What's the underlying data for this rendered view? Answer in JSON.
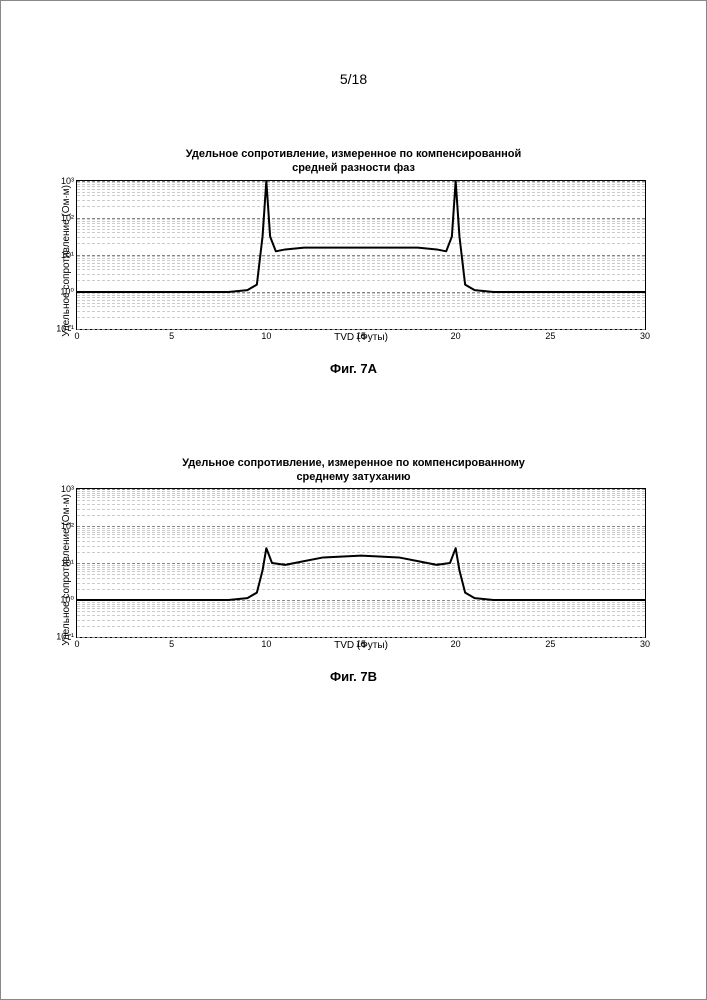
{
  "page_number": "5/18",
  "chartA": {
    "type": "line",
    "title_line1": "Удельное сопротивление, измеренное по компенсированной",
    "title_line2": "средней разности фаз",
    "ylabel": "Удельное сопротивление (Ом·м)",
    "xlabel": "TVD (Футы)",
    "caption": "Фиг. 7A",
    "xlim": [
      0,
      30
    ],
    "xticks": [
      0,
      5,
      10,
      15,
      20,
      25,
      30
    ],
    "ylim_exp": [
      -1,
      3
    ],
    "ytick_exps": [
      -1,
      0,
      1,
      2,
      3
    ],
    "ytick_labels": [
      "10⁻¹",
      "10⁰",
      "10¹",
      "10²",
      "10³"
    ],
    "line_color": "#000000",
    "line_width": 2,
    "grid_color_major": "#888888",
    "grid_color_minor": "#cccccc",
    "background_color": "#ffffff",
    "series_x": [
      0,
      8,
      9,
      9.5,
      9.8,
      10,
      10.2,
      10.5,
      11,
      12,
      15,
      18,
      19,
      19.5,
      19.8,
      20,
      20.2,
      20.5,
      21,
      22,
      30
    ],
    "series_y_exp": [
      0,
      0,
      0.05,
      0.2,
      1.5,
      3.3,
      1.5,
      1.1,
      1.15,
      1.2,
      1.2,
      1.2,
      1.15,
      1.1,
      1.5,
      3.3,
      1.5,
      0.2,
      0.05,
      0,
      0
    ]
  },
  "chartB": {
    "type": "line",
    "title_line1": "Удельное сопротивление, измеренное по компенсированному",
    "title_line2": "среднему затуханию",
    "ylabel": "Удельное сопротивление (Ом·м)",
    "xlabel": "TVD (Футы)",
    "caption": "Фиг. 7B",
    "xlim": [
      0,
      30
    ],
    "xticks": [
      0,
      5,
      10,
      15,
      20,
      25,
      30
    ],
    "ylim_exp": [
      -1,
      3
    ],
    "ytick_exps": [
      -1,
      0,
      1,
      2,
      3
    ],
    "ytick_labels": [
      "10⁻¹",
      "10⁰",
      "10¹",
      "10²",
      "10³"
    ],
    "line_color": "#000000",
    "line_width": 2,
    "grid_color_major": "#888888",
    "grid_color_minor": "#cccccc",
    "background_color": "#ffffff",
    "series_x": [
      0,
      8,
      9,
      9.5,
      9.8,
      10,
      10.3,
      11,
      12,
      13,
      15,
      17,
      18,
      19,
      19.7,
      20,
      20.2,
      20.5,
      21,
      22,
      30
    ],
    "series_y_exp": [
      0,
      0,
      0.05,
      0.2,
      0.8,
      1.4,
      1.0,
      0.95,
      1.05,
      1.15,
      1.2,
      1.15,
      1.05,
      0.95,
      1.0,
      1.4,
      0.8,
      0.2,
      0.05,
      0,
      0
    ]
  }
}
